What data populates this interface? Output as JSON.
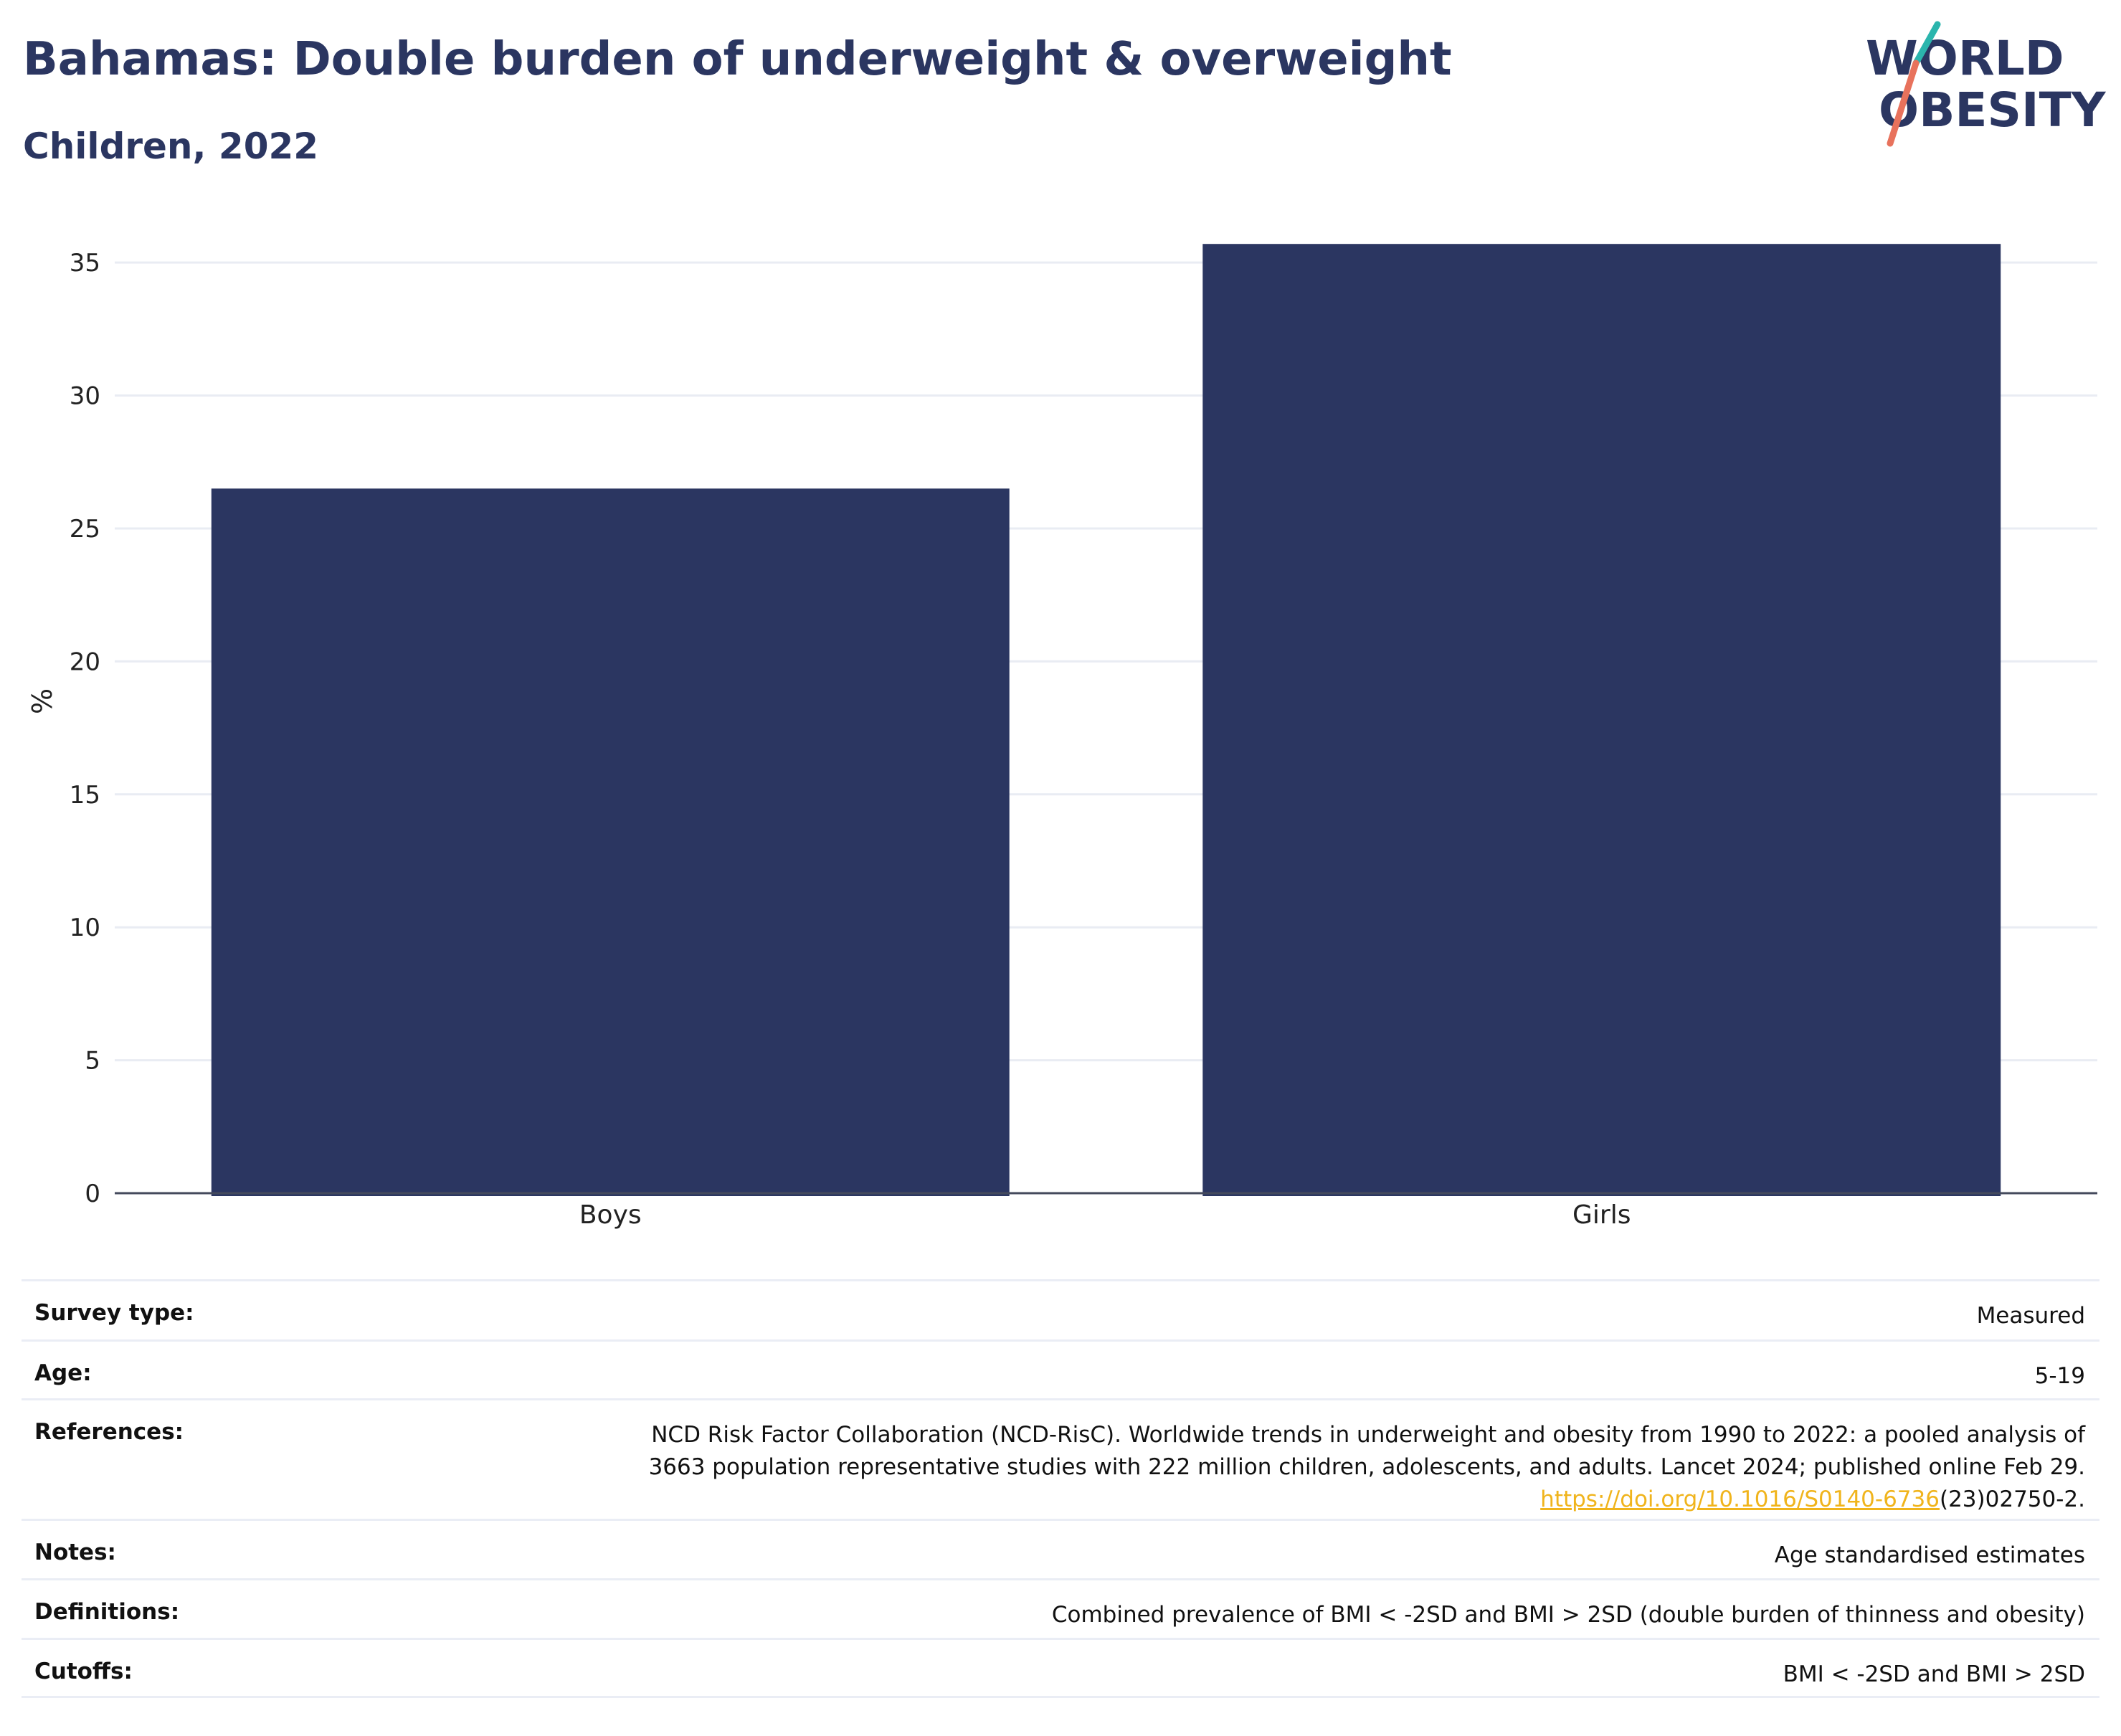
{
  "header": {
    "title": "Bahamas: Double burden of underweight & overweight",
    "subtitle": "Children, 2022"
  },
  "logo": {
    "line1": "WORLD",
    "line2": "OBESITY",
    "colors": {
      "text": "#2b3661",
      "slash_top": "#2bb5ad",
      "slash_bottom": "#e8725c"
    }
  },
  "chart_data": {
    "type": "bar",
    "categories": [
      "Boys",
      "Girls"
    ],
    "values": [
      26.5,
      35.7
    ],
    "ylabel": "%",
    "xlabel": "",
    "ylim": [
      0,
      37
    ],
    "yticks": [
      0,
      5,
      10,
      15,
      20,
      25,
      30,
      35
    ],
    "grid": true,
    "bar_color": "#2b3661"
  },
  "meta": {
    "survey_type": {
      "label": "Survey type:",
      "value": "Measured"
    },
    "age": {
      "label": "Age:",
      "value": "5-19"
    },
    "references": {
      "label": "References:",
      "line1": "NCD Risk Factor Collaboration (NCD-RisC). Worldwide trends in underweight and obesity from 1990 to 2022: a pooled analysis of",
      "line2": "3663 population representative studies with 222 million children, adolescents, and adults. Lancet 2024; published online Feb 29.",
      "link": "https://doi.org/10.1016/S0140-6736",
      "link_suffix": "(23)02750-2."
    },
    "notes": {
      "label": "Notes:",
      "value": "Age standardised estimates"
    },
    "definitions": {
      "label": "Definitions:",
      "value": "Combined prevalence of BMI < -2SD and BMI > 2SD (double burden of thinness and obesity)"
    },
    "cutoffs": {
      "label": "Cutoffs:",
      "value": "BMI < -2SD and BMI > 2SD"
    }
  }
}
